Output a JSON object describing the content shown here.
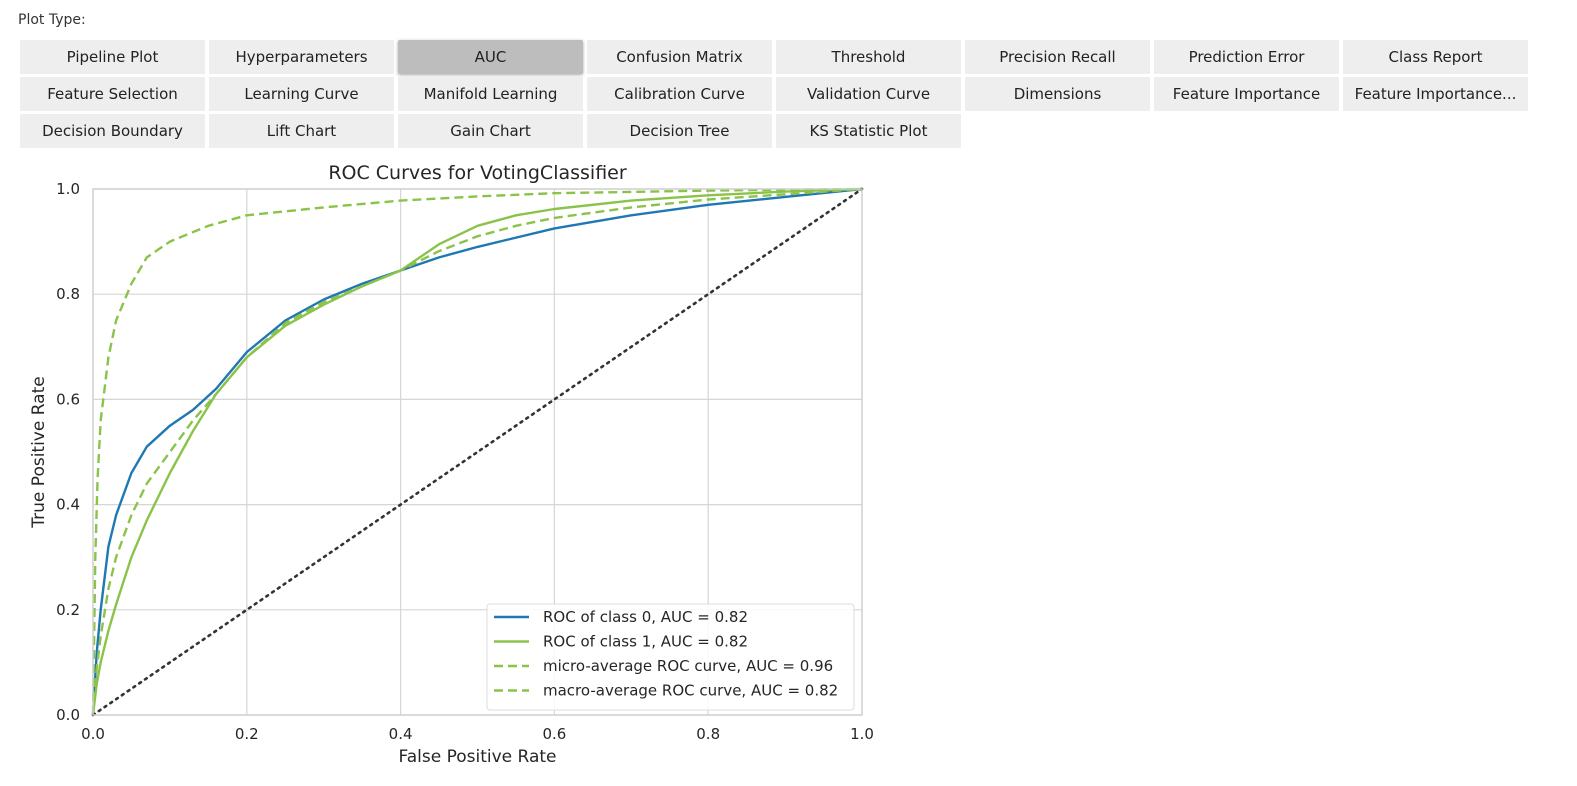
{
  "plot_type_label": "Plot Type:",
  "plot_buttons": [
    {
      "label": "Pipeline Plot"
    },
    {
      "label": "Hyperparameters"
    },
    {
      "label": "AUC",
      "selected": true
    },
    {
      "label": "Confusion Matrix"
    },
    {
      "label": "Threshold"
    },
    {
      "label": "Precision Recall"
    },
    {
      "label": "Prediction Error"
    },
    {
      "label": "Class Report"
    },
    {
      "label": "Feature Selection"
    },
    {
      "label": "Learning Curve"
    },
    {
      "label": "Manifold Learning"
    },
    {
      "label": "Calibration Curve"
    },
    {
      "label": "Validation Curve"
    },
    {
      "label": "Dimensions"
    },
    {
      "label": "Feature Importance"
    },
    {
      "label": "Feature Importance..."
    },
    {
      "label": "Decision Boundary"
    },
    {
      "label": "Lift Chart"
    },
    {
      "label": "Gain Chart"
    },
    {
      "label": "Decision Tree"
    },
    {
      "label": "KS Statistic Plot"
    }
  ],
  "chart_data": {
    "type": "line",
    "title": "ROC Curves for VotingClassifier",
    "xlabel": "False Positive Rate",
    "ylabel": "True Positive Rate",
    "xlim": [
      0,
      1
    ],
    "ylim": [
      0,
      1
    ],
    "xticks": [
      "0.0",
      "0.2",
      "0.4",
      "0.6",
      "0.8",
      "1.0"
    ],
    "yticks": [
      "0.0",
      "0.2",
      "0.4",
      "0.6",
      "0.8",
      "1.0"
    ],
    "grid": true,
    "legend_position": "lower-right",
    "series": [
      {
        "name": "ROC of class 0, AUC = 0.82",
        "color": "#1f77b4",
        "dash": "solid",
        "x": [
          0,
          0.005,
          0.01,
          0.02,
          0.03,
          0.05,
          0.07,
          0.1,
          0.13,
          0.16,
          0.2,
          0.25,
          0.3,
          0.35,
          0.4,
          0.45,
          0.5,
          0.6,
          0.7,
          0.8,
          0.9,
          1.0
        ],
        "y": [
          0,
          0.12,
          0.2,
          0.32,
          0.38,
          0.46,
          0.51,
          0.55,
          0.58,
          0.62,
          0.69,
          0.75,
          0.79,
          0.82,
          0.845,
          0.87,
          0.89,
          0.925,
          0.95,
          0.97,
          0.985,
          1.0
        ]
      },
      {
        "name": "ROC of class 1, AUC = 0.82",
        "color": "#8bc34a",
        "dash": "solid",
        "x": [
          0,
          0.005,
          0.01,
          0.02,
          0.03,
          0.05,
          0.07,
          0.1,
          0.13,
          0.16,
          0.2,
          0.25,
          0.3,
          0.35,
          0.4,
          0.45,
          0.5,
          0.55,
          0.6,
          0.7,
          0.8,
          0.9,
          1.0
        ],
        "y": [
          0,
          0.06,
          0.1,
          0.16,
          0.21,
          0.3,
          0.37,
          0.46,
          0.54,
          0.61,
          0.68,
          0.74,
          0.78,
          0.815,
          0.845,
          0.895,
          0.93,
          0.95,
          0.962,
          0.978,
          0.988,
          0.995,
          1.0
        ]
      },
      {
        "name": "micro-average ROC curve, AUC = 0.96",
        "color": "#8bc34a",
        "dash": "dashed",
        "x": [
          0,
          0.003,
          0.006,
          0.01,
          0.02,
          0.03,
          0.05,
          0.07,
          0.1,
          0.15,
          0.2,
          0.3,
          0.4,
          0.5,
          0.6,
          0.8,
          1.0
        ],
        "y": [
          0,
          0.3,
          0.45,
          0.56,
          0.68,
          0.75,
          0.82,
          0.87,
          0.9,
          0.93,
          0.95,
          0.965,
          0.978,
          0.986,
          0.992,
          0.997,
          1.0
        ]
      },
      {
        "name": "macro-average ROC curve, AUC = 0.82",
        "color": "#8bc34a",
        "dash": "dashed",
        "x": [
          0,
          0.005,
          0.01,
          0.02,
          0.03,
          0.05,
          0.07,
          0.1,
          0.13,
          0.16,
          0.2,
          0.25,
          0.3,
          0.35,
          0.4,
          0.45,
          0.5,
          0.55,
          0.6,
          0.7,
          0.8,
          0.9,
          1.0
        ],
        "y": [
          0,
          0.09,
          0.15,
          0.24,
          0.3,
          0.38,
          0.44,
          0.5,
          0.56,
          0.61,
          0.68,
          0.745,
          0.785,
          0.815,
          0.845,
          0.882,
          0.91,
          0.93,
          0.945,
          0.965,
          0.98,
          0.99,
          1.0
        ]
      },
      {
        "name": "chance",
        "color": "#333333",
        "dash": "dotted",
        "show_in_legend": false,
        "x": [
          0,
          1
        ],
        "y": [
          0,
          1
        ]
      }
    ]
  }
}
